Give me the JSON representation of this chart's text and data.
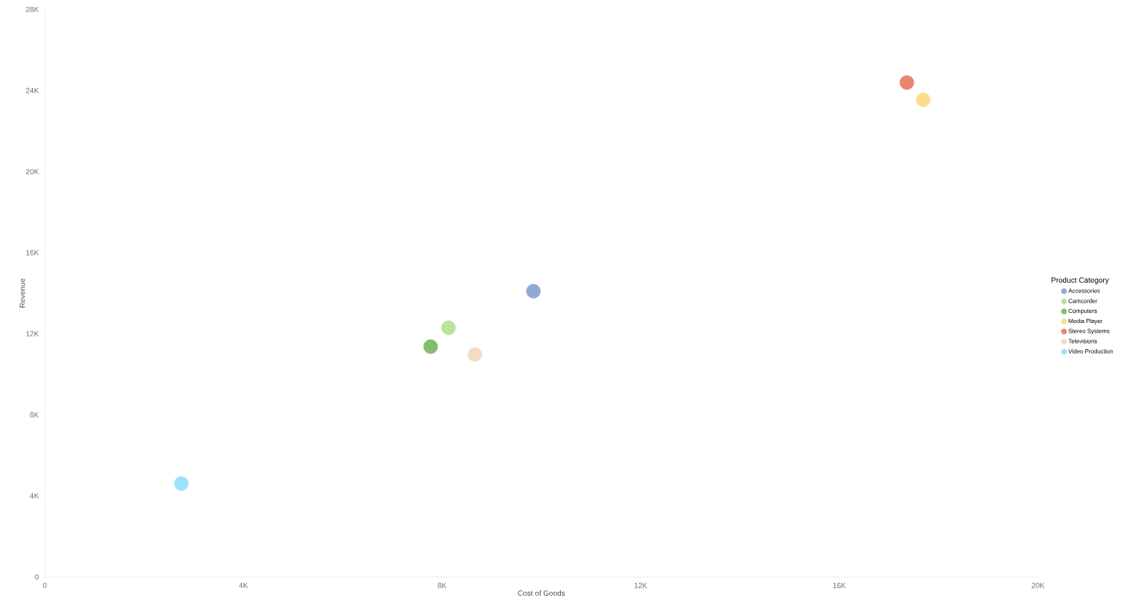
{
  "chart_data": {
    "type": "scatter",
    "xlabel": "Cost of Goods",
    "ylabel": "Revenue",
    "legend_title": "Product Category",
    "legend": "right",
    "marker": "circle",
    "grid": false,
    "xlim": [
      0,
      20000
    ],
    "ylim": [
      0,
      28000
    ],
    "xticks": [
      0,
      {
        "value": 4000,
        "label": "4K"
      },
      {
        "value": 8000,
        "label": "8K"
      },
      {
        "value": 12000,
        "label": "12K"
      },
      {
        "value": 16000,
        "label": "16K"
      },
      {
        "value": 20000,
        "label": "20K"
      }
    ],
    "yticks": [
      0,
      {
        "value": 4000,
        "label": "4K"
      },
      {
        "value": 8000,
        "label": "8K"
      },
      {
        "value": 12000,
        "label": "12K"
      },
      {
        "value": 16000,
        "label": "16K"
      },
      {
        "value": 20000,
        "label": "20K"
      },
      {
        "value": 24000,
        "label": "24K"
      },
      {
        "value": 28000,
        "label": "28K"
      }
    ],
    "series": [
      {
        "name": "Accessories",
        "color": "#8faad4",
        "x": [
          9840
        ],
        "values": [
          14100
        ]
      },
      {
        "name": "Camcorder",
        "color": "#bae39c",
        "x": [
          8130
        ],
        "values": [
          12290
        ]
      },
      {
        "name": "Computers",
        "color": "#81bd6c",
        "x": [
          7770
        ],
        "values": [
          11360
        ]
      },
      {
        "name": "Media Player",
        "color": "#fbdd8c",
        "x": [
          17690
        ],
        "values": [
          23540
        ]
      },
      {
        "name": "Stereo Systems",
        "color": "#e8866d",
        "x": [
          17360
        ],
        "values": [
          24390
        ]
      },
      {
        "name": "Televisions",
        "color": "#f3ddc2",
        "x": [
          8660
        ],
        "values": [
          10970
        ]
      },
      {
        "name": "Video Production",
        "color": "#9ce2fb",
        "x": [
          2750
        ],
        "values": [
          4610
        ]
      }
    ]
  }
}
